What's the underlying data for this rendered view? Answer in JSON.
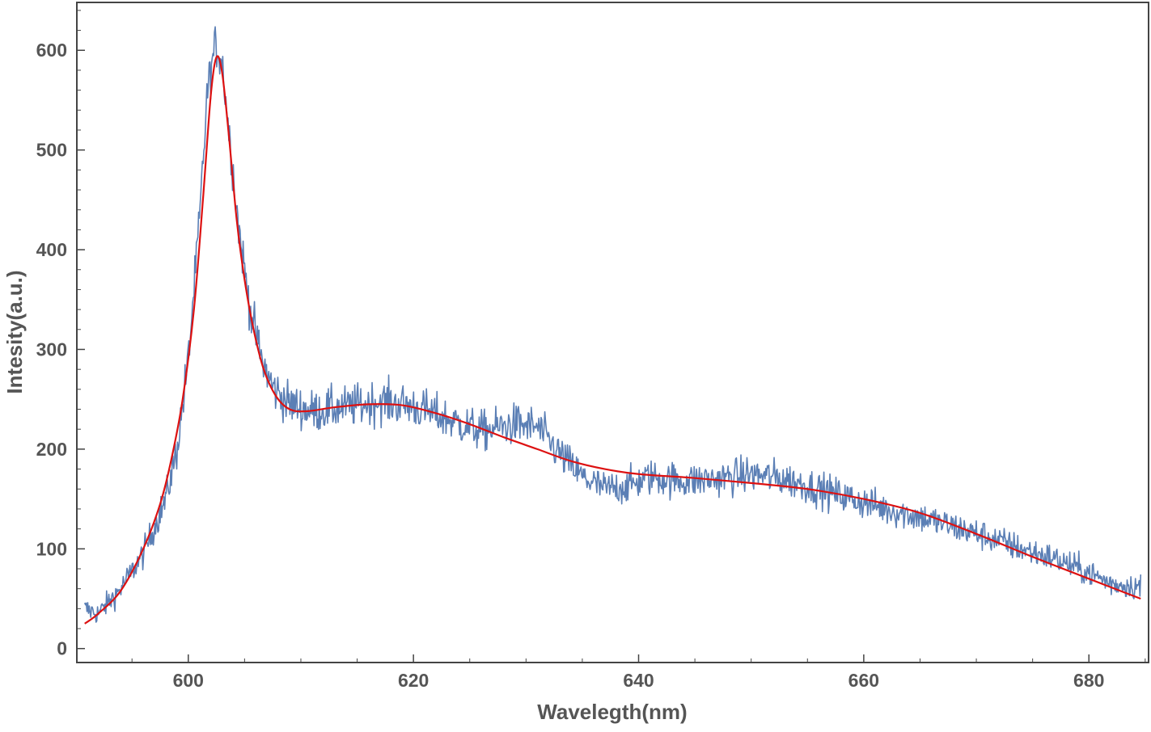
{
  "chart_data": {
    "type": "line",
    "title": "",
    "xlabel": "Wavelegth(nm)",
    "ylabel": "Intesity(a.u.)",
    "xlim": [
      590.1,
      685.3
    ],
    "ylim": [
      -14,
      648
    ],
    "x_ticks": [
      600,
      620,
      640,
      660,
      680
    ],
    "y_ticks": [
      0,
      100,
      200,
      300,
      400,
      500,
      600
    ],
    "x_tick_labels": [
      "600",
      "620",
      "640",
      "660",
      "680"
    ],
    "y_tick_labels": [
      "0",
      "100",
      "200",
      "300",
      "400",
      "500",
      "600"
    ],
    "grid": false,
    "legend": "none",
    "colors": {
      "data": "#5b7fb5",
      "fit": "#dd1111",
      "frame": "#444444",
      "text": "#555555"
    },
    "series": [
      {
        "role": "measured",
        "x_range": [
          590.8,
          684.6
        ],
        "noise_amplitude": 20,
        "envelope": [
          [
            590.8,
            40
          ],
          [
            592,
            35
          ],
          [
            594,
            60
          ],
          [
            596,
            95
          ],
          [
            598,
            150
          ],
          [
            599,
            200
          ],
          [
            600,
            290
          ],
          [
            601,
            430
          ],
          [
            601.7,
            560
          ],
          [
            602.4,
            605
          ],
          [
            603,
            590
          ],
          [
            603.6,
            520
          ],
          [
            604.5,
            420
          ],
          [
            605.5,
            340
          ],
          [
            606.5,
            290
          ],
          [
            607.5,
            262
          ],
          [
            609,
            245
          ],
          [
            611,
            238
          ],
          [
            614,
            242
          ],
          [
            617,
            248
          ],
          [
            620,
            243
          ],
          [
            623,
            230
          ],
          [
            626,
            218
          ],
          [
            629,
            225
          ],
          [
            631,
            222
          ],
          [
            633,
            195
          ],
          [
            635,
            172
          ],
          [
            637,
            160
          ],
          [
            639,
            163
          ],
          [
            641,
            172
          ],
          [
            644,
            168
          ],
          [
            647,
            170
          ],
          [
            650,
            175
          ],
          [
            653,
            170
          ],
          [
            656,
            160
          ],
          [
            659,
            150
          ],
          [
            662,
            140
          ],
          [
            665,
            132
          ],
          [
            668,
            122
          ],
          [
            671,
            112
          ],
          [
            674,
            100
          ],
          [
            677,
            90
          ],
          [
            680,
            76
          ],
          [
            682,
            65
          ],
          [
            684.6,
            62
          ]
        ]
      },
      {
        "role": "fit",
        "points": [
          [
            590.8,
            25
          ],
          [
            592,
            35
          ],
          [
            594,
            58
          ],
          [
            596,
            100
          ],
          [
            597.5,
            145
          ],
          [
            598.5,
            190
          ],
          [
            599.5,
            250
          ],
          [
            600.5,
            340
          ],
          [
            601.3,
            450
          ],
          [
            602,
            555
          ],
          [
            602.5,
            593
          ],
          [
            603,
            578
          ],
          [
            603.6,
            515
          ],
          [
            604.3,
            430
          ],
          [
            605,
            370
          ],
          [
            605.8,
            320
          ],
          [
            606.7,
            280
          ],
          [
            607.8,
            253
          ],
          [
            609,
            240
          ],
          [
            610.5,
            238
          ],
          [
            613,
            242
          ],
          [
            616,
            245
          ],
          [
            619,
            244
          ],
          [
            622,
            236
          ],
          [
            625,
            225
          ],
          [
            628,
            212
          ],
          [
            631,
            200
          ],
          [
            634,
            188
          ],
          [
            637,
            180
          ],
          [
            640,
            175
          ],
          [
            645,
            171
          ],
          [
            650,
            166
          ],
          [
            655,
            160
          ],
          [
            660,
            150
          ],
          [
            665,
            136
          ],
          [
            670,
            115
          ],
          [
            675,
            92
          ],
          [
            680,
            70
          ],
          [
            684.6,
            50
          ]
        ]
      }
    ]
  }
}
